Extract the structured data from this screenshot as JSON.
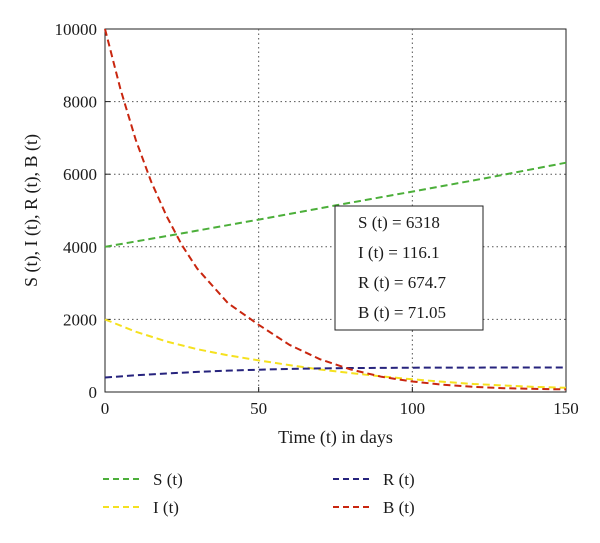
{
  "chart_data": {
    "type": "line",
    "xlabel": "Time (t) in days",
    "ylabel": "S (t), I (t), R (t), B (t)",
    "xlim": [
      0,
      150
    ],
    "ylim": [
      0,
      10000
    ],
    "xticks": [
      0,
      50,
      100,
      150
    ],
    "yticks": [
      0,
      2000,
      4000,
      6000,
      8000,
      10000
    ],
    "grid": true,
    "legend_position": "bottom",
    "series": [
      {
        "name": "S (t)",
        "color": "#4caf3a",
        "dash": "dashed",
        "x": [
          0,
          25,
          50,
          75,
          100,
          125,
          150
        ],
        "y": [
          4000,
          4370,
          4750,
          5140,
          5520,
          5910,
          6318
        ]
      },
      {
        "name": "I (t)",
        "color": "#f5e11f",
        "dash": "dashed",
        "x": [
          0,
          10,
          20,
          30,
          40,
          50,
          60,
          70,
          80,
          90,
          100,
          110,
          120,
          130,
          140,
          150
        ],
        "y": [
          2000,
          1660,
          1390,
          1180,
          1010,
          870,
          740,
          620,
          520,
          430,
          350,
          280,
          220,
          180,
          140,
          116.1
        ]
      },
      {
        "name": "R (t)",
        "color": "#26237d",
        "dash": "dashed",
        "x": [
          0,
          10,
          20,
          30,
          40,
          50,
          60,
          70,
          80,
          90,
          100,
          110,
          120,
          130,
          140,
          150
        ],
        "y": [
          400,
          460,
          510,
          555,
          590,
          615,
          635,
          650,
          660,
          665,
          670,
          672,
          673,
          674,
          674.5,
          674.7
        ]
      },
      {
        "name": "B (t)",
        "color": "#c9260f",
        "dash": "dashed",
        "x": [
          0,
          5,
          10,
          15,
          20,
          25,
          30,
          40,
          50,
          60,
          70,
          80,
          90,
          100,
          110,
          120,
          130,
          140,
          150
        ],
        "y": [
          10000,
          8350,
          6950,
          5800,
          4850,
          4050,
          3400,
          2450,
          1850,
          1300,
          900,
          620,
          420,
          290,
          200,
          140,
          105,
          85,
          71.05
        ]
      }
    ],
    "annotation": {
      "lines": [
        "S (t) = 6318",
        "I (t) = 116.1",
        "R (t) = 674.7",
        "B (t) = 71.05"
      ]
    }
  }
}
